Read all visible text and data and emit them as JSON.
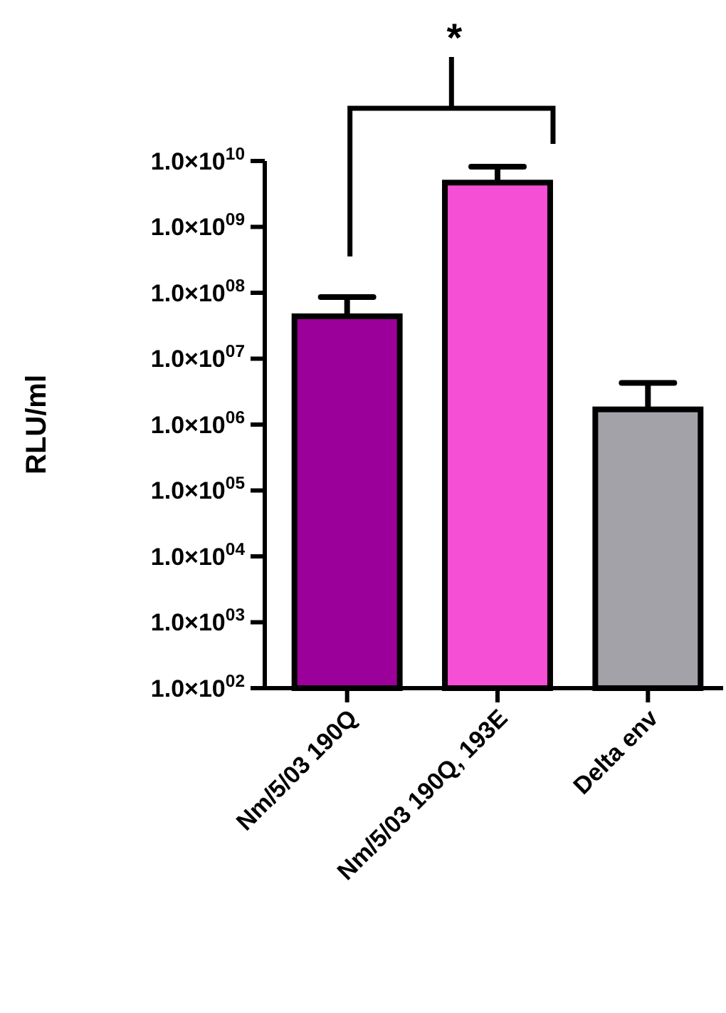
{
  "chart_data": {
    "type": "bar",
    "ylabel": "RLU/ml",
    "categories": [
      "Nm/5/03 190Q",
      "Nm/5/03 190Q, 193E",
      "Delta env"
    ],
    "values": [
      44000000.0,
      4700000000.0,
      1700000.0
    ],
    "colors": [
      "#9b009b",
      "#f54fd6",
      "#a3a2a8"
    ],
    "errors": [
      [
        44000000.0,
        86000000.0
      ],
      [
        4700000000.0,
        8200000000.0
      ],
      [
        1700000.0,
        4300000.0
      ]
    ],
    "log": true,
    "ylim": [
      100.0,
      10000000000.0
    ],
    "yticks": [
      {
        "value": 100.0,
        "label": "1.0×10$^{02}$"
      },
      {
        "value": 1000.0,
        "label": "1.0×10$^{03}$"
      },
      {
        "value": 10000.0,
        "label": "1.0×10$^{04}$"
      },
      {
        "value": 100000.0,
        "label": "1.0×10$^{05}$"
      },
      {
        "value": 1000000.0,
        "label": "1.0×10$^{06}$"
      },
      {
        "value": 10000000.0,
        "label": "1.0×10$^{07}$"
      },
      {
        "value": 100000000.0,
        "label": "1.0×10$^{08}$"
      },
      {
        "value": 1000000000.0,
        "label": "1.0×10$^{09}$"
      },
      {
        "value": 10000000000.0,
        "label": "1.0×10$^{10}$"
      }
    ],
    "annotations": [
      "*"
    ],
    "grid": false
  }
}
